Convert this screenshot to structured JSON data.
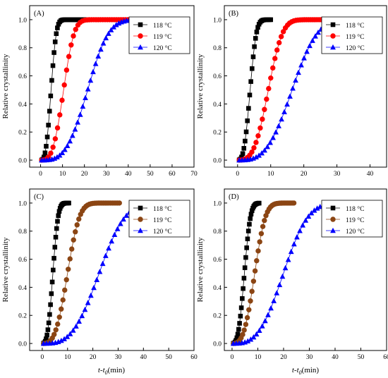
{
  "figure": {
    "ylabel": "Relative crystallinity",
    "xlabel_main": "t-t",
    "xlabel_sub": "0",
    "xlabel_unit": "(min)"
  },
  "legend_labels": [
    "118 °C",
    "119 °C",
    "120 °C"
  ],
  "chart_data": [
    {
      "type": "scatter",
      "panel": "(A)",
      "ylim": [
        -0.05,
        1.1
      ],
      "xlim": [
        -5,
        70
      ],
      "xticks": [
        0,
        10,
        20,
        30,
        40,
        50,
        60,
        70
      ],
      "yticks": [
        0.0,
        0.2,
        0.4,
        0.6,
        0.8,
        1.0
      ],
      "legend_position": "top-right",
      "series": [
        {
          "name": "118 °C",
          "marker": "square",
          "color": "#000000",
          "t_start": 0.5,
          "t_end": 20.5,
          "t_half": 4.8,
          "n": 3.0,
          "points": 40
        },
        {
          "name": "119 °C",
          "marker": "circle",
          "color": "#ff0000",
          "t_start": 0.5,
          "t_end": 47,
          "t_half": 10.5,
          "n": 3.2,
          "points": 46
        },
        {
          "name": "120 °C",
          "marker": "triangle",
          "color": "#0000ff",
          "t_start": 0.5,
          "t_end": 65,
          "t_half": 21.5,
          "n": 3.3,
          "points": 56
        }
      ]
    },
    {
      "type": "scatter",
      "panel": "(B)",
      "ylim": [
        -0.05,
        1.1
      ],
      "xlim": [
        -4,
        45
      ],
      "xticks": [
        0,
        10,
        20,
        30,
        40
      ],
      "yticks": [
        0.0,
        0.2,
        0.4,
        0.6,
        0.8,
        1.0
      ],
      "legend_position": "top-right",
      "series": [
        {
          "name": "118 °C",
          "marker": "square",
          "color": "#000000",
          "t_start": 0.5,
          "t_end": 10,
          "t_half": 3.8,
          "n": 3.0,
          "points": 28
        },
        {
          "name": "119 °C",
          "marker": "circle",
          "color": "#ff0000",
          "t_start": 0.5,
          "t_end": 26.5,
          "t_half": 9.3,
          "n": 3.2,
          "points": 42
        },
        {
          "name": "120 °C",
          "marker": "triangle",
          "color": "#0000ff",
          "t_start": 0.5,
          "t_end": 40.5,
          "t_half": 16.5,
          "n": 3.2,
          "points": 48
        }
      ]
    },
    {
      "type": "scatter",
      "panel": "(C)",
      "ylim": [
        -0.05,
        1.1
      ],
      "xlim": [
        -5,
        60
      ],
      "xticks": [
        0,
        10,
        20,
        30,
        40,
        50,
        60
      ],
      "yticks": [
        0.0,
        0.2,
        0.4,
        0.6,
        0.8,
        1.0
      ],
      "legend_position": "top-right",
      "series": [
        {
          "name": "118 °C",
          "marker": "square",
          "color": "#000000",
          "t_start": 0.5,
          "t_end": 10.5,
          "t_half": 4.2,
          "n": 3.0,
          "points": 30
        },
        {
          "name": "119 °C",
          "marker": "circle",
          "color": "#8b4513",
          "t_start": 0.5,
          "t_end": 30.5,
          "t_half": 10.0,
          "n": 3.1,
          "points": 44
        },
        {
          "name": "120 °C",
          "marker": "triangle",
          "color": "#0000ff",
          "t_start": 0.5,
          "t_end": 55.5,
          "t_half": 22.5,
          "n": 3.2,
          "points": 48
        }
      ]
    },
    {
      "type": "scatter",
      "panel": "(D)",
      "ylim": [
        -0.05,
        1.1
      ],
      "xlim": [
        -3,
        60
      ],
      "xticks": [
        0,
        10,
        20,
        30,
        40,
        50,
        60
      ],
      "yticks": [
        0.0,
        0.2,
        0.4,
        0.6,
        0.8,
        1.0
      ],
      "legend_position": "top-right",
      "series": [
        {
          "name": "118 °C",
          "marker": "square",
          "color": "#000000",
          "t_start": 0.5,
          "t_end": 10.5,
          "t_half": 4.8,
          "n": 3.0,
          "points": 30
        },
        {
          "name": "119 °C",
          "marker": "circle",
          "color": "#8b4513",
          "t_start": 0.5,
          "t_end": 24,
          "t_half": 8.8,
          "n": 3.1,
          "points": 40
        },
        {
          "name": "120 °C",
          "marker": "triangle",
          "color": "#0000ff",
          "t_start": 0.5,
          "t_end": 55.5,
          "t_half": 20.0,
          "n": 3.1,
          "points": 50
        }
      ]
    }
  ]
}
